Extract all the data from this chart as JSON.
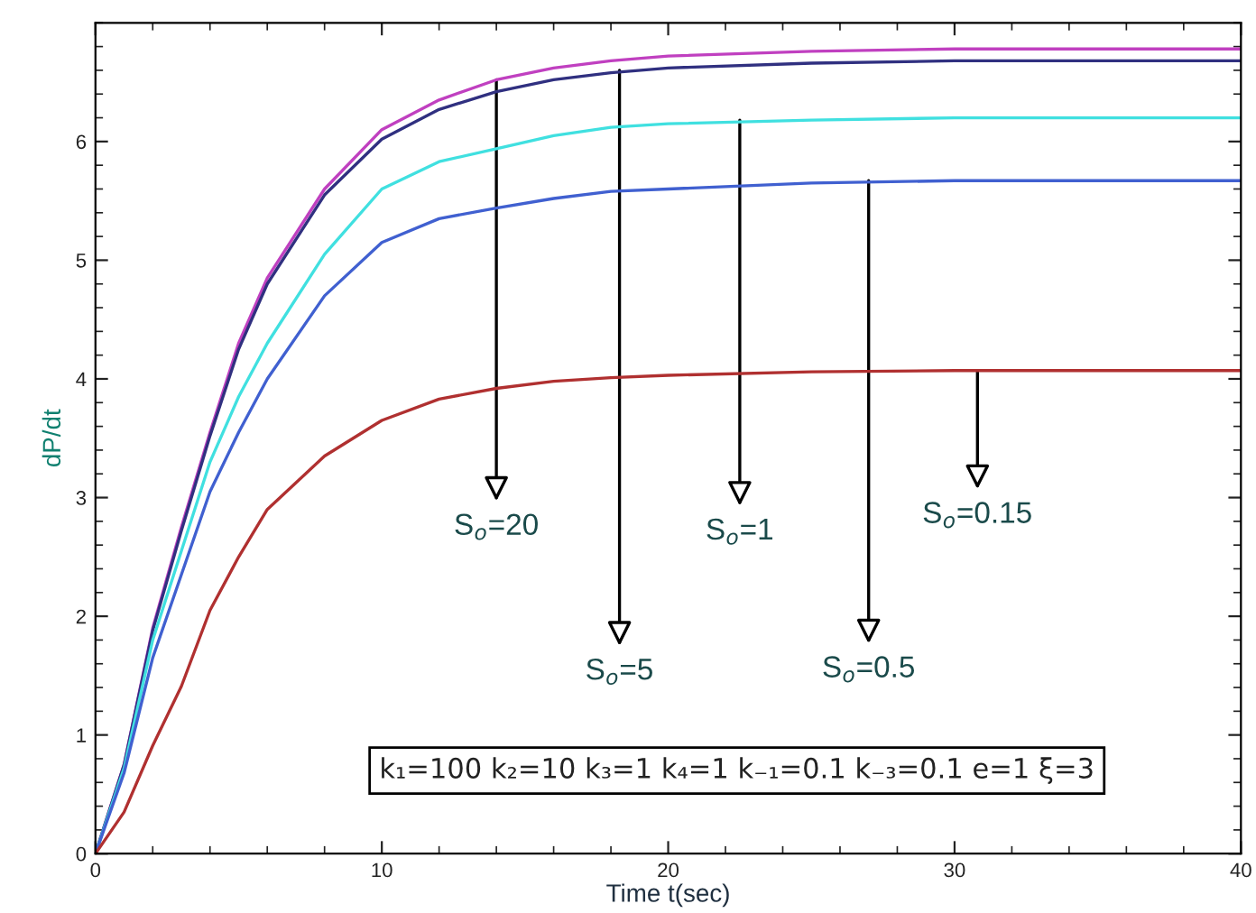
{
  "chart_data": {
    "type": "line",
    "xlabel": "Time t(sec)",
    "ylabel": "dP/dt",
    "x": [
      0,
      1,
      2,
      3,
      4,
      5,
      6,
      8,
      10,
      12,
      14,
      16,
      18,
      20,
      25,
      30,
      40
    ],
    "series": [
      {
        "color": "#c040c0",
        "values": [
          0,
          0.75,
          1.9,
          2.75,
          3.55,
          4.3,
          4.85,
          5.6,
          6.1,
          6.35,
          6.52,
          6.62,
          6.68,
          6.72,
          6.76,
          6.78,
          6.78
        ]
      },
      {
        "color": "#303080",
        "values": [
          0,
          0.75,
          1.88,
          2.72,
          3.52,
          4.25,
          4.8,
          5.55,
          6.02,
          6.27,
          6.42,
          6.52,
          6.58,
          6.62,
          6.66,
          6.68,
          6.68
        ]
      },
      {
        "color": "#40e0e0",
        "values": [
          0,
          0.72,
          1.8,
          2.55,
          3.3,
          3.85,
          4.3,
          5.05,
          5.6,
          5.83,
          5.94,
          6.05,
          6.12,
          6.15,
          6.18,
          6.2,
          6.2
        ]
      },
      {
        "color": "#4060d0",
        "values": [
          0,
          0.68,
          1.65,
          2.35,
          3.05,
          3.55,
          4.0,
          4.7,
          5.15,
          5.35,
          5.44,
          5.52,
          5.58,
          5.6,
          5.65,
          5.67,
          5.67
        ]
      },
      {
        "color": "#b03030",
        "values": [
          0,
          0.35,
          0.91,
          1.41,
          2.05,
          2.5,
          2.9,
          3.35,
          3.65,
          3.83,
          3.92,
          3.98,
          4.01,
          4.03,
          4.06,
          4.07,
          4.07
        ]
      }
    ],
    "xlim": [
      0,
      40
    ],
    "xticks": [
      0,
      10,
      20,
      30,
      40
    ],
    "ylim": [
      0,
      7
    ],
    "yticks": [
      0,
      1,
      2,
      3,
      4,
      5,
      6
    ],
    "grid": false,
    "legend": false,
    "annotations": [
      {
        "text": "S$_{o}$=20",
        "x": 14,
        "y": 6.52
      },
      {
        "text": "S$_{o}$=5",
        "x": 18.3,
        "y": 6.6
      },
      {
        "text": "S$_{o}$=1",
        "x": 22.5,
        "y": 6.18
      },
      {
        "text": "S$_{o}$=0.5",
        "x": 27,
        "y": 5.67
      },
      {
        "text": "S$_{o}$=0.15",
        "x": 30.8,
        "y": 4.07
      },
      "k₁=100 k₂=10 k₃=1 k₄=1 k₋₁=0.1 k₋₃=0.1 e=1 ξ=3"
    ]
  }
}
